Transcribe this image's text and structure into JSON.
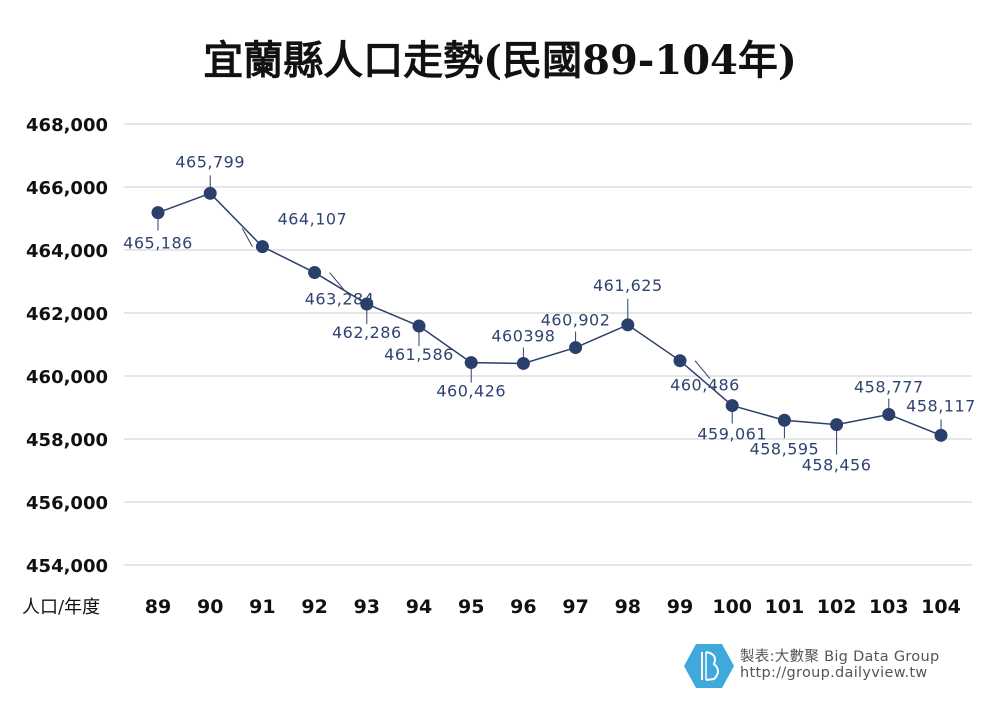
{
  "chart_data": {
    "type": "line",
    "title": "宜蘭縣人口走勢(民國89-104年)",
    "xlabel": "人口/年度",
    "ylabel": "",
    "categories": [
      "89",
      "90",
      "91",
      "92",
      "93",
      "94",
      "95",
      "96",
      "97",
      "98",
      "99",
      "100",
      "101",
      "102",
      "103",
      "104"
    ],
    "values": [
      465186,
      465799,
      464107,
      463284,
      462286,
      461586,
      460426,
      460398,
      460902,
      461625,
      460486,
      459061,
      458595,
      458456,
      458777,
      458117
    ],
    "data_labels": [
      "465,186",
      "465,799",
      "464,107",
      "463,284",
      "462,286",
      "461,586",
      "460,426",
      "460398",
      "460,902",
      "461,625",
      "460,486",
      "459,061",
      "458,595",
      "458,456",
      "458,777",
      "458,117"
    ],
    "ylim": [
      454000,
      468000
    ],
    "yticks": [
      "454,000",
      "456,000",
      "458,000",
      "460,000",
      "462,000",
      "464,000",
      "466,000",
      "468,000"
    ],
    "grid": true,
    "colors": {
      "line": "#2b3f6b",
      "marker": "#2b3f6b",
      "label": "#2f4470",
      "grid": "#cccccc"
    }
  },
  "footer": {
    "credit": "製表:大數聚 Big Data Group",
    "url": "http://group.dailyview.tw",
    "logo_color": "#3fa9dc"
  }
}
